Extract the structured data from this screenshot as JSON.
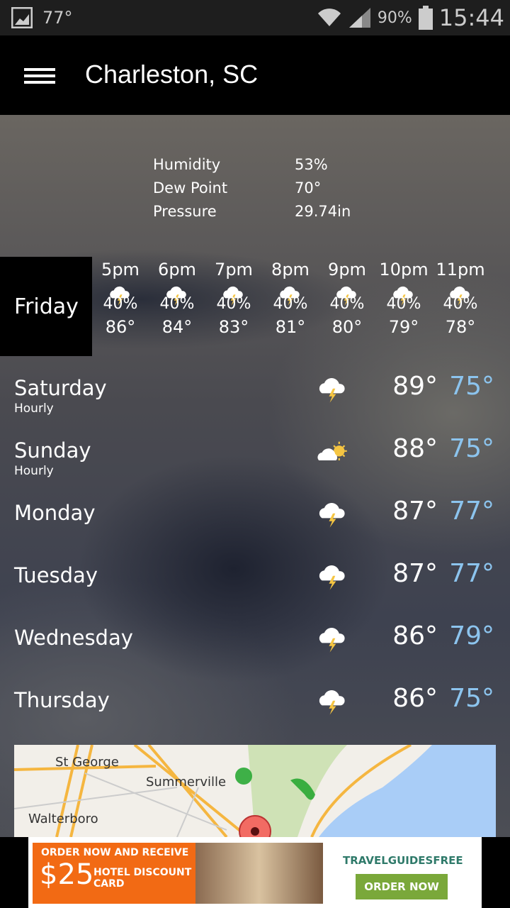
{
  "status_bar": {
    "temp": "77°",
    "battery": "90%",
    "time": "15:44"
  },
  "app_bar": {
    "title": "Charleston, SC"
  },
  "details": [
    {
      "label": "Humidity",
      "value": "53%"
    },
    {
      "label": "Dew Point",
      "value": "70°"
    },
    {
      "label": "Pressure",
      "value": "29.74in"
    }
  ],
  "today": {
    "label": "Friday",
    "hours": [
      {
        "time": "5pm",
        "pct": "40%",
        "temp": "86°",
        "icon": "thunderstorm"
      },
      {
        "time": "6pm",
        "pct": "40%",
        "temp": "84°",
        "icon": "thunderstorm"
      },
      {
        "time": "7pm",
        "pct": "40%",
        "temp": "83°",
        "icon": "thunderstorm"
      },
      {
        "time": "8pm",
        "pct": "40%",
        "temp": "81°",
        "icon": "thunderstorm"
      },
      {
        "time": "9pm",
        "pct": "40%",
        "temp": "80°",
        "icon": "thunderstorm"
      },
      {
        "time": "10pm",
        "pct": "40%",
        "temp": "79°",
        "icon": "thunderstorm"
      },
      {
        "time": "11pm",
        "pct": "40%",
        "temp": "78°",
        "icon": "thunderstorm"
      }
    ]
  },
  "days": [
    {
      "name": "Saturday",
      "sub": "Hourly",
      "hi": "89°",
      "lo": "75°",
      "icon": "thunderstorm"
    },
    {
      "name": "Sunday",
      "sub": "Hourly",
      "hi": "88°",
      "lo": "75°",
      "icon": "partly-sunny"
    },
    {
      "name": "Monday",
      "hi": "87°",
      "lo": "77°",
      "icon": "thunderstorm"
    },
    {
      "name": "Tuesday",
      "hi": "87°",
      "lo": "77°",
      "icon": "thunderstorm"
    },
    {
      "name": "Wednesday",
      "hi": "86°",
      "lo": "79°",
      "icon": "thunderstorm"
    },
    {
      "name": "Thursday",
      "hi": "86°",
      "lo": "75°",
      "icon": "thunderstorm"
    }
  ],
  "map": {
    "labels": [
      "St George",
      "Summerville",
      "Walterboro"
    ]
  },
  "ad": {
    "line1": "ORDER NOW AND RECEIVE",
    "amount": "$25",
    "line2": "HOTEL DISCOUNT",
    "line3": "CARD",
    "brand": "TRAVELGUIDESFREE",
    "button": "ORDER NOW"
  },
  "colors": {
    "low_temp": "#8cc4ee",
    "ad_orange": "#f26a14",
    "ad_green": "#7aa83a"
  }
}
